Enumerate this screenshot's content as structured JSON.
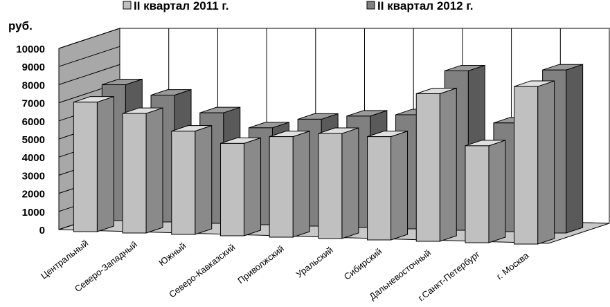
{
  "chart_data": {
    "type": "bar",
    "ylabel": "руб.",
    "ylim": [
      0,
      10000
    ],
    "yticks": [
      0,
      1000,
      2000,
      3000,
      4000,
      5000,
      6000,
      7000,
      8000,
      9000,
      10000
    ],
    "categories": [
      "Центральный",
      "Северо-Западный",
      "Южный",
      "Северо-Кавказский",
      "Приволжский",
      "Уральский",
      "Сибирский",
      "Дальневосточный",
      "г.Санкт-Петербург",
      "г. Москва"
    ],
    "series": [
      {
        "name": "II квартал 2011 г.",
        "color": "#c0c0c0",
        "values": [
          7150,
          6600,
          5700,
          5100,
          5550,
          5800,
          5700,
          8150,
          5350,
          8700
        ]
      },
      {
        "name": "II квартал 2012 г.",
        "color": "#808080",
        "values": [
          7500,
          7000,
          6100,
          5350,
          5900,
          6150,
          6300,
          8800,
          6000,
          9000
        ]
      }
    ],
    "grid": true,
    "legend": "top"
  }
}
